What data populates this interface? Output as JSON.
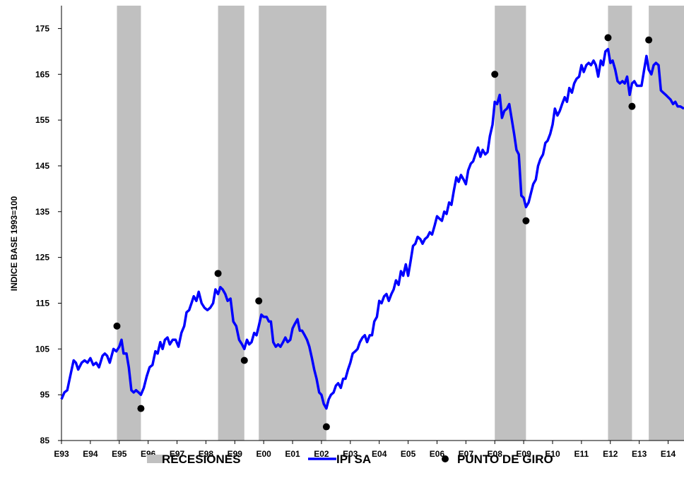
{
  "chart_data": {
    "type": "line",
    "title": "",
    "xlabel": "",
    "ylabel": "INDICE BASE 1993=100",
    "ylim": [
      85,
      180
    ],
    "xlim": [
      1993.0,
      2014.55
    ],
    "y_ticks": [
      85,
      95,
      105,
      115,
      125,
      135,
      145,
      155,
      165,
      175
    ],
    "x_ticks": [
      {
        "label": "E93",
        "x": 1993
      },
      {
        "label": "E94",
        "x": 1994
      },
      {
        "label": "E95",
        "x": 1995
      },
      {
        "label": "E96",
        "x": 1996
      },
      {
        "label": "E97",
        "x": 1997
      },
      {
        "label": "E98",
        "x": 1998
      },
      {
        "label": "E99",
        "x": 1999
      },
      {
        "label": "E00",
        "x": 2000
      },
      {
        "label": "E01",
        "x": 2001
      },
      {
        "label": "E02",
        "x": 2002
      },
      {
        "label": "E03",
        "x": 2003
      },
      {
        "label": "E04",
        "x": 2004
      },
      {
        "label": "E05",
        "x": 2005
      },
      {
        "label": "E06",
        "x": 2006
      },
      {
        "label": "E07",
        "x": 2007
      },
      {
        "label": "E08",
        "x": 2008
      },
      {
        "label": "E09",
        "x": 2009
      },
      {
        "label": "E10",
        "x": 2010
      },
      {
        "label": "E11",
        "x": 2011
      },
      {
        "label": "E12",
        "x": 2012
      },
      {
        "label": "E13",
        "x": 2013
      },
      {
        "label": "E14",
        "x": 2014
      }
    ],
    "grid": false,
    "legend_position": "bottom",
    "legend": [
      {
        "label": "RECESIONES",
        "kind": "band",
        "color": "#c0c0c0"
      },
      {
        "label": "IPI SA",
        "kind": "line",
        "color": "#0000ff"
      },
      {
        "label": "PUNTO DE GIRO",
        "kind": "marker",
        "color": "#000000"
      }
    ],
    "recessions": [
      {
        "start": 1994.92,
        "end": 1995.75
      },
      {
        "start": 1998.42,
        "end": 1999.33
      },
      {
        "start": 1999.83,
        "end": 2002.17
      },
      {
        "start": 2008.0,
        "end": 2009.08
      },
      {
        "start": 2011.92,
        "end": 2012.75
      },
      {
        "start": 2013.33,
        "end": 2014.55
      }
    ],
    "turning_points": [
      {
        "x": 1994.92,
        "y": 110
      },
      {
        "x": 1995.75,
        "y": 92
      },
      {
        "x": 1998.42,
        "y": 121.5
      },
      {
        "x": 1999.33,
        "y": 102.5
      },
      {
        "x": 1999.83,
        "y": 115.5
      },
      {
        "x": 2002.17,
        "y": 88
      },
      {
        "x": 2008.0,
        "y": 165
      },
      {
        "x": 2009.08,
        "y": 133
      },
      {
        "x": 2011.92,
        "y": 173
      },
      {
        "x": 2012.75,
        "y": 158
      },
      {
        "x": 2013.33,
        "y": 172.5
      }
    ],
    "series": [
      {
        "name": "IPI SA",
        "color": "#0000ff",
        "points": [
          [
            1993.0,
            94
          ],
          [
            1993.1,
            95.5
          ],
          [
            1993.2,
            96
          ],
          [
            1993.3,
            99
          ],
          [
            1993.42,
            102.5
          ],
          [
            1993.5,
            102
          ],
          [
            1993.58,
            100.5
          ],
          [
            1993.7,
            102
          ],
          [
            1993.8,
            102.5
          ],
          [
            1993.9,
            102
          ],
          [
            1994.0,
            103
          ],
          [
            1994.1,
            101.5
          ],
          [
            1994.2,
            102
          ],
          [
            1994.3,
            101
          ],
          [
            1994.42,
            103.5
          ],
          [
            1994.5,
            104
          ],
          [
            1994.58,
            103.5
          ],
          [
            1994.67,
            102
          ],
          [
            1994.8,
            105
          ],
          [
            1994.9,
            104.5
          ],
          [
            1995.0,
            105.5
          ],
          [
            1995.08,
            107
          ],
          [
            1995.15,
            104
          ],
          [
            1995.25,
            104
          ],
          [
            1995.33,
            101
          ],
          [
            1995.42,
            96
          ],
          [
            1995.5,
            95.5
          ],
          [
            1995.58,
            96
          ],
          [
            1995.67,
            95.5
          ],
          [
            1995.75,
            95
          ],
          [
            1995.85,
            96.5
          ],
          [
            1995.95,
            99
          ],
          [
            1996.05,
            101
          ],
          [
            1996.15,
            101.5
          ],
          [
            1996.25,
            104.5
          ],
          [
            1996.33,
            104
          ],
          [
            1996.42,
            106.5
          ],
          [
            1996.5,
            105
          ],
          [
            1996.58,
            107
          ],
          [
            1996.67,
            107.5
          ],
          [
            1996.75,
            106
          ],
          [
            1996.85,
            107
          ],
          [
            1996.95,
            107
          ],
          [
            1997.05,
            105.5
          ],
          [
            1997.15,
            108.5
          ],
          [
            1997.25,
            110
          ],
          [
            1997.33,
            113
          ],
          [
            1997.42,
            113.5
          ],
          [
            1997.5,
            115
          ],
          [
            1997.58,
            116.5
          ],
          [
            1997.67,
            115.5
          ],
          [
            1997.75,
            117.5
          ],
          [
            1997.85,
            115
          ],
          [
            1997.95,
            114
          ],
          [
            1998.05,
            113.5
          ],
          [
            1998.15,
            114
          ],
          [
            1998.25,
            115
          ],
          [
            1998.33,
            118
          ],
          [
            1998.42,
            117
          ],
          [
            1998.5,
            118.5
          ],
          [
            1998.58,
            118
          ],
          [
            1998.67,
            117
          ],
          [
            1998.75,
            115.5
          ],
          [
            1998.85,
            116
          ],
          [
            1998.95,
            111
          ],
          [
            1999.05,
            110
          ],
          [
            1999.15,
            107
          ],
          [
            1999.25,
            106
          ],
          [
            1999.33,
            105
          ],
          [
            1999.42,
            107
          ],
          [
            1999.5,
            106
          ],
          [
            1999.58,
            106.5
          ],
          [
            1999.67,
            108.5
          ],
          [
            1999.75,
            108
          ],
          [
            1999.83,
            110
          ],
          [
            1999.92,
            112.5
          ],
          [
            2000.0,
            112
          ],
          [
            2000.1,
            112
          ],
          [
            2000.18,
            111
          ],
          [
            2000.25,
            111
          ],
          [
            2000.33,
            106.5
          ],
          [
            2000.42,
            105.5
          ],
          [
            2000.5,
            106
          ],
          [
            2000.58,
            105.5
          ],
          [
            2000.67,
            106.5
          ],
          [
            2000.75,
            107.5
          ],
          [
            2000.83,
            106.5
          ],
          [
            2000.92,
            107
          ],
          [
            2001.0,
            109.5
          ],
          [
            2001.08,
            110.5
          ],
          [
            2001.17,
            111.5
          ],
          [
            2001.25,
            109
          ],
          [
            2001.33,
            109
          ],
          [
            2001.42,
            108
          ],
          [
            2001.5,
            107
          ],
          [
            2001.58,
            105.5
          ],
          [
            2001.67,
            103
          ],
          [
            2001.75,
            100.5
          ],
          [
            2001.83,
            98.5
          ],
          [
            2001.92,
            95.5
          ],
          [
            2002.0,
            95
          ],
          [
            2002.08,
            93
          ],
          [
            2002.17,
            92
          ],
          [
            2002.25,
            94
          ],
          [
            2002.33,
            95
          ],
          [
            2002.42,
            95.5
          ],
          [
            2002.5,
            97
          ],
          [
            2002.58,
            97.5
          ],
          [
            2002.67,
            96.5
          ],
          [
            2002.75,
            98.5
          ],
          [
            2002.83,
            98.5
          ],
          [
            2002.92,
            100.5
          ],
          [
            2003.0,
            102
          ],
          [
            2003.08,
            104
          ],
          [
            2003.17,
            104.5
          ],
          [
            2003.25,
            105
          ],
          [
            2003.33,
            106.5
          ],
          [
            2003.42,
            107.5
          ],
          [
            2003.5,
            108
          ],
          [
            2003.58,
            106.5
          ],
          [
            2003.67,
            108
          ],
          [
            2003.75,
            108
          ],
          [
            2003.83,
            111
          ],
          [
            2003.92,
            112
          ],
          [
            2004.0,
            115.5
          ],
          [
            2004.08,
            115
          ],
          [
            2004.17,
            116.5
          ],
          [
            2004.25,
            117
          ],
          [
            2004.33,
            115.5
          ],
          [
            2004.42,
            117
          ],
          [
            2004.5,
            118
          ],
          [
            2004.58,
            120
          ],
          [
            2004.67,
            119
          ],
          [
            2004.75,
            122
          ],
          [
            2004.83,
            121
          ],
          [
            2004.92,
            123.5
          ],
          [
            2005.0,
            121
          ],
          [
            2005.08,
            124
          ],
          [
            2005.17,
            127.5
          ],
          [
            2005.25,
            128
          ],
          [
            2005.33,
            129.5
          ],
          [
            2005.42,
            129
          ],
          [
            2005.5,
            128
          ],
          [
            2005.58,
            129
          ],
          [
            2005.67,
            129.5
          ],
          [
            2005.75,
            130.5
          ],
          [
            2005.83,
            130
          ],
          [
            2005.92,
            132
          ],
          [
            2006.0,
            134
          ],
          [
            2006.08,
            133.5
          ],
          [
            2006.17,
            133
          ],
          [
            2006.25,
            135
          ],
          [
            2006.33,
            134.5
          ],
          [
            2006.42,
            137
          ],
          [
            2006.5,
            136.5
          ],
          [
            2006.58,
            139.5
          ],
          [
            2006.67,
            142.5
          ],
          [
            2006.75,
            141.5
          ],
          [
            2006.83,
            143
          ],
          [
            2006.92,
            142
          ],
          [
            2007.0,
            141
          ],
          [
            2007.08,
            144
          ],
          [
            2007.17,
            145.5
          ],
          [
            2007.25,
            146
          ],
          [
            2007.33,
            147.5
          ],
          [
            2007.42,
            149
          ],
          [
            2007.5,
            147
          ],
          [
            2007.58,
            148.5
          ],
          [
            2007.67,
            147.5
          ],
          [
            2007.75,
            148
          ],
          [
            2007.83,
            151.5
          ],
          [
            2007.92,
            154
          ],
          [
            2008.0,
            159
          ],
          [
            2008.08,
            158.5
          ],
          [
            2008.17,
            160.5
          ],
          [
            2008.25,
            155.5
          ],
          [
            2008.33,
            157
          ],
          [
            2008.42,
            157.5
          ],
          [
            2008.5,
            158.5
          ],
          [
            2008.58,
            155.5
          ],
          [
            2008.67,
            152
          ],
          [
            2008.75,
            148.5
          ],
          [
            2008.83,
            147.5
          ],
          [
            2008.92,
            138.5
          ],
          [
            2009.0,
            138
          ],
          [
            2009.08,
            136
          ],
          [
            2009.17,
            137
          ],
          [
            2009.25,
            139
          ],
          [
            2009.33,
            141
          ],
          [
            2009.42,
            142
          ],
          [
            2009.5,
            145
          ],
          [
            2009.58,
            146.5
          ],
          [
            2009.67,
            147.5
          ],
          [
            2009.75,
            150
          ],
          [
            2009.83,
            150.5
          ],
          [
            2009.92,
            152
          ],
          [
            2010.0,
            154
          ],
          [
            2010.08,
            157.5
          ],
          [
            2010.17,
            156
          ],
          [
            2010.25,
            157
          ],
          [
            2010.33,
            158.5
          ],
          [
            2010.42,
            160
          ],
          [
            2010.5,
            159
          ],
          [
            2010.58,
            162
          ],
          [
            2010.67,
            161
          ],
          [
            2010.75,
            163
          ],
          [
            2010.83,
            164
          ],
          [
            2010.92,
            164.5
          ],
          [
            2011.0,
            167
          ],
          [
            2011.08,
            165.5
          ],
          [
            2011.17,
            167
          ],
          [
            2011.25,
            167.5
          ],
          [
            2011.33,
            167
          ],
          [
            2011.42,
            168
          ],
          [
            2011.5,
            167
          ],
          [
            2011.58,
            164.5
          ],
          [
            2011.67,
            168
          ],
          [
            2011.75,
            167
          ],
          [
            2011.83,
            170
          ],
          [
            2011.92,
            170.5
          ],
          [
            2012.0,
            167.5
          ],
          [
            2012.08,
            168
          ],
          [
            2012.17,
            166
          ],
          [
            2012.25,
            163.5
          ],
          [
            2012.33,
            163
          ],
          [
            2012.42,
            163.5
          ],
          [
            2012.5,
            163
          ],
          [
            2012.58,
            164.5
          ],
          [
            2012.67,
            160.5
          ],
          [
            2012.75,
            163
          ],
          [
            2012.83,
            163.5
          ],
          [
            2012.92,
            162.5
          ],
          [
            2013.0,
            162.5
          ],
          [
            2013.08,
            162.5
          ],
          [
            2013.17,
            166
          ],
          [
            2013.25,
            169
          ],
          [
            2013.33,
            166
          ],
          [
            2013.42,
            165
          ],
          [
            2013.5,
            167
          ],
          [
            2013.58,
            167.5
          ],
          [
            2013.67,
            167
          ],
          [
            2013.75,
            161.5
          ],
          [
            2013.83,
            161
          ],
          [
            2013.92,
            160.5
          ],
          [
            2014.0,
            160
          ],
          [
            2014.08,
            159.5
          ],
          [
            2014.17,
            158.5
          ],
          [
            2014.25,
            159
          ],
          [
            2014.33,
            158
          ],
          [
            2014.42,
            158
          ],
          [
            2014.55,
            157.5
          ]
        ]
      }
    ]
  }
}
